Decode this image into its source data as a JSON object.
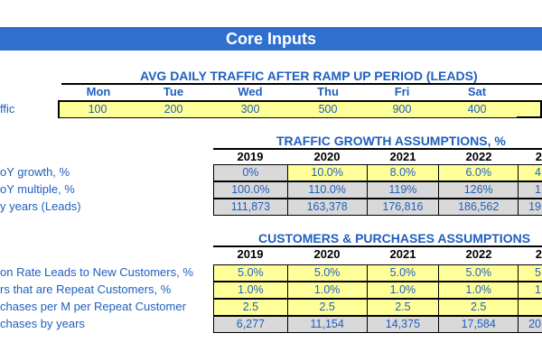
{
  "title": "Core Inputs",
  "traffic": {
    "section_title": "AVG DAILY TRAFFIC AFTER RAMP UP PERIOD (LEADS)",
    "days": [
      "Mon",
      "Tue",
      "Wed",
      "Thu",
      "Fri",
      "Sat"
    ],
    "row_label": "ffic",
    "values": [
      "100",
      "200",
      "300",
      "500",
      "900",
      "400"
    ]
  },
  "growth": {
    "section_title": "TRAFFIC GROWTH ASSUMPTIONS, %",
    "years": [
      "2019",
      "2020",
      "2021",
      "2022",
      "2"
    ],
    "rows": [
      {
        "label": "oY growth, %",
        "values": [
          "0%",
          "10.0%",
          "8.0%",
          "6.0%",
          "4"
        ]
      },
      {
        "label": "oY multiple, %",
        "values": [
          "100.0%",
          "110.0%",
          "119%",
          "126%",
          "1"
        ]
      },
      {
        "label": "y years (Leads)",
        "values": [
          "111,873",
          "163,378",
          "176,816",
          "186,562",
          "19"
        ]
      }
    ]
  },
  "customers": {
    "section_title": "CUSTOMERS & PURCHASES ASSUMPTIONS",
    "years": [
      "2019",
      "2020",
      "2021",
      "2022",
      "2"
    ],
    "rows": [
      {
        "label": "on Rate Leads to New Customers, %",
        "values": [
          "5.0%",
          "5.0%",
          "5.0%",
          "5.0%",
          "5"
        ]
      },
      {
        "label": "rs that are Repeat Customers, %",
        "values": [
          "1.0%",
          "1.0%",
          "1.0%",
          "1.0%",
          "1"
        ]
      },
      {
        "label": "chases per M per Repeat Customer",
        "values": [
          "2.5",
          "2.5",
          "2.5",
          "2.5",
          ""
        ]
      },
      {
        "label": "chases by years",
        "values": [
          "6,277",
          "11,154",
          "14,375",
          "17,584",
          "20"
        ]
      }
    ]
  }
}
